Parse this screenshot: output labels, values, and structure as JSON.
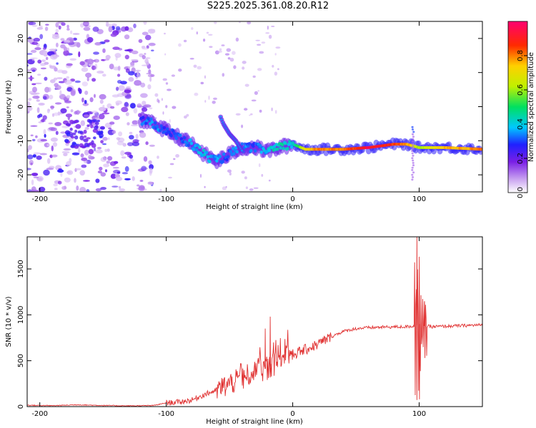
{
  "title": "S225.2025.361.08.20.R12",
  "chart_data": [
    {
      "type": "heatmap",
      "title": "S225.2025.361.08.20.R12",
      "xlabel": "Height of straight line (km)",
      "ylabel": "Frequency (Hz)",
      "xlim": [
        -210,
        150
      ],
      "ylim": [
        -25,
        25
      ],
      "xticks": [
        -200,
        -100,
        0,
        100
      ],
      "yticks": [
        -20,
        -10,
        0,
        10,
        20
      ],
      "colorbar": {
        "label": "Normalized spectral amplitude",
        "range": [
          0,
          1
        ],
        "ticks": [
          "0.0",
          "0.2",
          "0.4",
          "0.6",
          "0.8"
        ],
        "colors": [
          "#ffffff",
          "#c8a0f0",
          "#7a1fe6",
          "#2020ff",
          "#00c8ff",
          "#00e060",
          "#c0f000",
          "#ffd000",
          "#ff2a00",
          "#ff0070"
        ]
      },
      "ridge": {
        "x": [
          -120,
          -110,
          -100,
          -90,
          -80,
          -70,
          -60,
          -50,
          -40,
          -30,
          -20,
          -10,
          0,
          10,
          20,
          40,
          60,
          80,
          90,
          100,
          120,
          150
        ],
        "y": [
          -4,
          -5,
          -7,
          -9,
          -11,
          -14,
          -16,
          -14,
          -12,
          -12,
          -13,
          -12,
          -11,
          -12.5,
          -12.5,
          -12.5,
          -12,
          -11,
          -11,
          -12,
          -12,
          -12.5
        ],
        "amplitude": [
          0.3,
          0.35,
          0.3,
          0.3,
          0.35,
          0.4,
          0.35,
          0.3,
          0.35,
          0.3,
          0.4,
          0.45,
          0.4,
          0.7,
          0.8,
          0.8,
          0.95,
          0.85,
          0.8,
          0.6,
          0.75,
          0.8
        ]
      },
      "branch": {
        "x": [
          -57,
          -55,
          -50,
          -45,
          -40
        ],
        "y": [
          -3,
          -5,
          -8,
          -10,
          -13
        ]
      }
    },
    {
      "type": "line",
      "xlabel": "Height of straight line (km)",
      "ylabel": "SNR (10 * v/v)",
      "xlim": [
        -210,
        150
      ],
      "ylim": [
        0,
        1850
      ],
      "xticks": [
        -200,
        -100,
        0,
        100
      ],
      "yticks": [
        0,
        500,
        1000,
        1500
      ],
      "color": "#e03030",
      "series": [
        {
          "name": "SNR",
          "x": [
            -210,
            -190,
            -170,
            -150,
            -130,
            -110,
            -100,
            -90,
            -80,
            -70,
            -60,
            -50,
            -40,
            -30,
            -20,
            -10,
            0,
            10,
            20,
            30,
            40,
            50,
            60,
            70,
            80,
            90,
            97,
            100,
            103,
            110,
            120,
            130,
            140,
            150
          ],
          "y": [
            15,
            10,
            20,
            12,
            8,
            12,
            40,
            50,
            70,
            130,
            180,
            250,
            300,
            380,
            420,
            500,
            570,
            620,
            680,
            760,
            820,
            850,
            860,
            865,
            868,
            870,
            880,
            900,
            880,
            870,
            875,
            880,
            885,
            890
          ],
          "peaks": [
            {
              "x": -18,
              "y": 980
            },
            {
              "x": -22,
              "y": 850
            },
            {
              "x": 98,
              "y": 1850
            },
            {
              "x": 100,
              "y": 80
            },
            {
              "x": 104,
              "y": 1150
            }
          ]
        }
      ]
    }
  ]
}
